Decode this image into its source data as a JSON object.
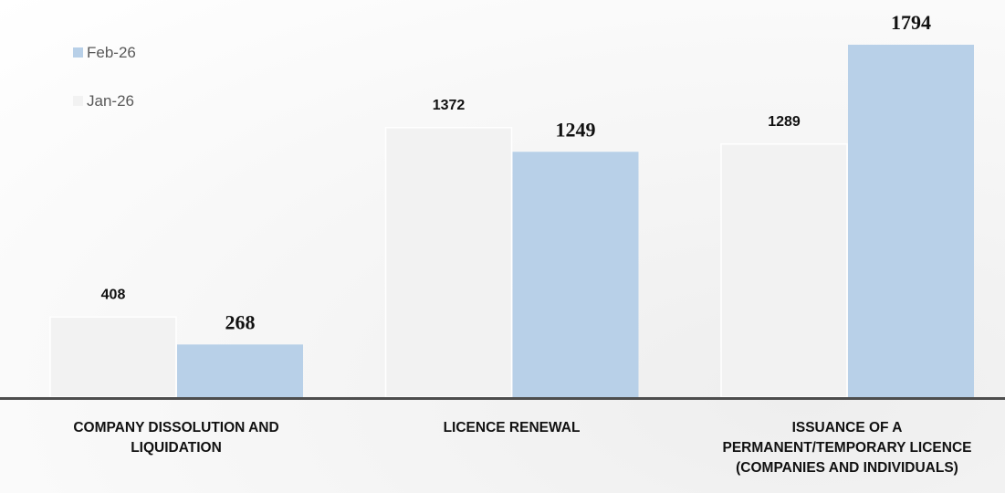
{
  "chart_data": {
    "type": "bar",
    "categories": [
      "COMPANY DISSOLUTION AND\nLIQUIDATION",
      "LICENCE RENEWAL",
      "ISSUANCE OF A\nPERMANENT/TEMPORARY LICENCE\n(COMPANIES AND INDIVIDUALS)"
    ],
    "series": [
      {
        "name": "Jan-26",
        "color": "#f2f2f2",
        "values": [
          408,
          1372,
          1289
        ]
      },
      {
        "name": "Feb-26",
        "color": "#b8d0e8",
        "values": [
          268,
          1249,
          1794
        ]
      }
    ],
    "legend": "top-left"
  }
}
